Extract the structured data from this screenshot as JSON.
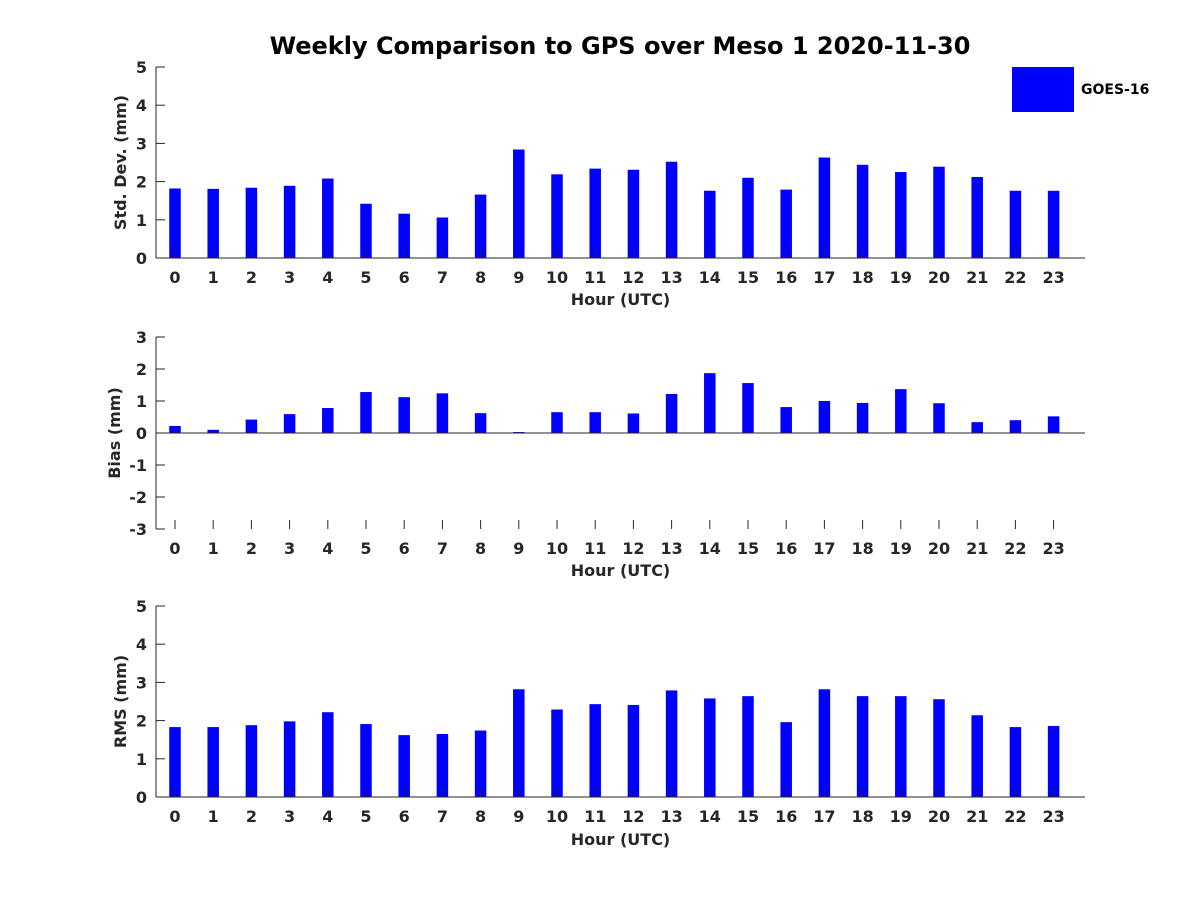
{
  "title": "Weekly Comparison to GPS over Meso 1 2020-11-30",
  "legend": {
    "label": "GOES-16",
    "placement": "top-right"
  },
  "colors": {
    "bar": "#0000ff",
    "axis": "#262626",
    "text": "#262626",
    "background": "#ffffff"
  },
  "chart_data": [
    {
      "type": "bar",
      "name": "std-dev",
      "title": "Weekly Comparison to GPS over Meso 1 2020-11-30",
      "series_name": "GOES-16",
      "xlabel": "Hour (UTC)",
      "ylabel": "Std. Dev. (mm)",
      "ylim": [
        0,
        5
      ],
      "yticks": [
        "0",
        "1",
        "2",
        "3",
        "4",
        "5"
      ],
      "categories": [
        "0",
        "1",
        "2",
        "3",
        "4",
        "5",
        "6",
        "7",
        "8",
        "9",
        "10",
        "11",
        "12",
        "13",
        "14",
        "15",
        "16",
        "17",
        "18",
        "19",
        "20",
        "21",
        "22",
        "23"
      ],
      "values": [
        1.82,
        1.81,
        1.84,
        1.89,
        2.08,
        1.42,
        1.16,
        1.06,
        1.66,
        2.84,
        2.19,
        2.34,
        2.31,
        2.52,
        1.76,
        2.1,
        1.79,
        2.63,
        2.44,
        2.25,
        2.39,
        2.12,
        1.76,
        1.76
      ]
    },
    {
      "type": "bar",
      "name": "bias",
      "series_name": "GOES-16",
      "xlabel": "Hour (UTC)",
      "ylabel": "Bias (mm)",
      "ylim": [
        -3,
        3
      ],
      "yticks": [
        "-3",
        "-2",
        "-1",
        "0",
        "1",
        "2",
        "3"
      ],
      "categories": [
        "0",
        "1",
        "2",
        "3",
        "4",
        "5",
        "6",
        "7",
        "8",
        "9",
        "10",
        "11",
        "12",
        "13",
        "14",
        "15",
        "16",
        "17",
        "18",
        "19",
        "20",
        "21",
        "22",
        "23"
      ],
      "values": [
        0.22,
        0.1,
        0.42,
        0.59,
        0.78,
        1.28,
        1.12,
        1.24,
        0.62,
        0.03,
        0.65,
        0.65,
        0.61,
        1.22,
        1.87,
        1.56,
        0.81,
        1.0,
        0.94,
        1.37,
        0.93,
        0.34,
        0.4,
        0.52
      ]
    },
    {
      "type": "bar",
      "name": "rms",
      "series_name": "GOES-16",
      "xlabel": "Hour (UTC)",
      "ylabel": "RMS (mm)",
      "ylim": [
        0,
        5
      ],
      "yticks": [
        "0",
        "1",
        "2",
        "3",
        "4",
        "5"
      ],
      "categories": [
        "0",
        "1",
        "2",
        "3",
        "4",
        "5",
        "6",
        "7",
        "8",
        "9",
        "10",
        "11",
        "12",
        "13",
        "14",
        "15",
        "16",
        "17",
        "18",
        "19",
        "20",
        "21",
        "22",
        "23"
      ],
      "values": [
        1.83,
        1.83,
        1.88,
        1.98,
        2.22,
        1.91,
        1.62,
        1.65,
        1.74,
        2.82,
        2.29,
        2.43,
        2.41,
        2.79,
        2.58,
        2.64,
        1.96,
        2.82,
        2.64,
        2.64,
        2.56,
        2.14,
        1.83,
        1.86
      ]
    }
  ]
}
